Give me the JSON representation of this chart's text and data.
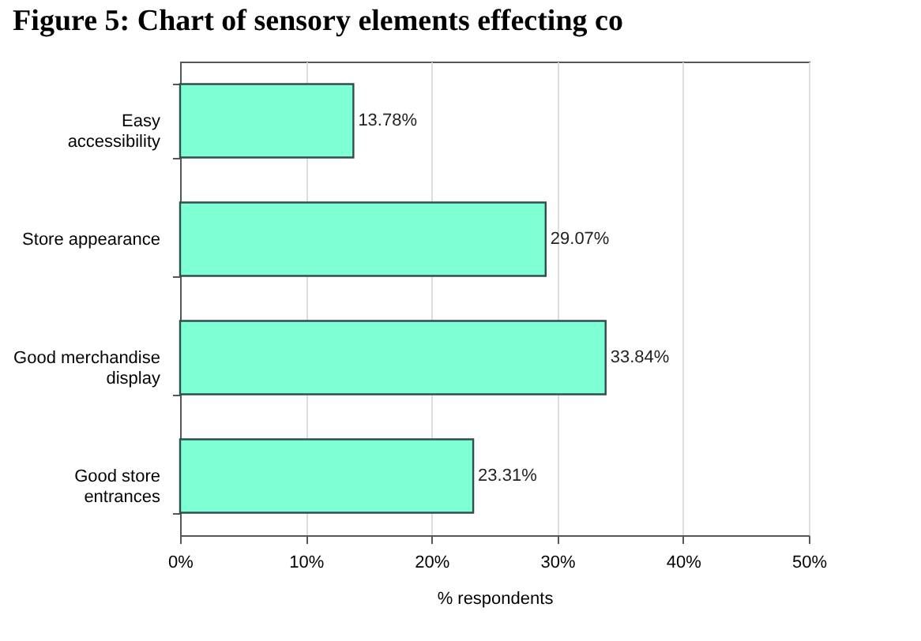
{
  "chart_data": {
    "type": "bar",
    "orientation": "horizontal",
    "title": "Figure 5: Chart of sensory elements effecting co",
    "categories": [
      "Easy accessibility",
      "Store appearance",
      "Good merchandise display",
      "Good store entrances"
    ],
    "values": [
      13.78,
      29.07,
      33.84,
      23.31
    ],
    "color": "#7fffd4",
    "value_labels": [
      "13.78%",
      "29.07%",
      "33.84%",
      "23.31%"
    ],
    "xlim": [
      0,
      50
    ],
    "xticks": [
      {
        "value": 0,
        "label": "0%"
      },
      {
        "value": 10,
        "label": "10%"
      },
      {
        "value": 20,
        "label": "20%"
      },
      {
        "value": 30,
        "label": "30%"
      },
      {
        "value": 40,
        "label": "40%"
      },
      {
        "value": 50,
        "label": "50%"
      }
    ],
    "xlabel": "% respondents",
    "grid": "x"
  }
}
